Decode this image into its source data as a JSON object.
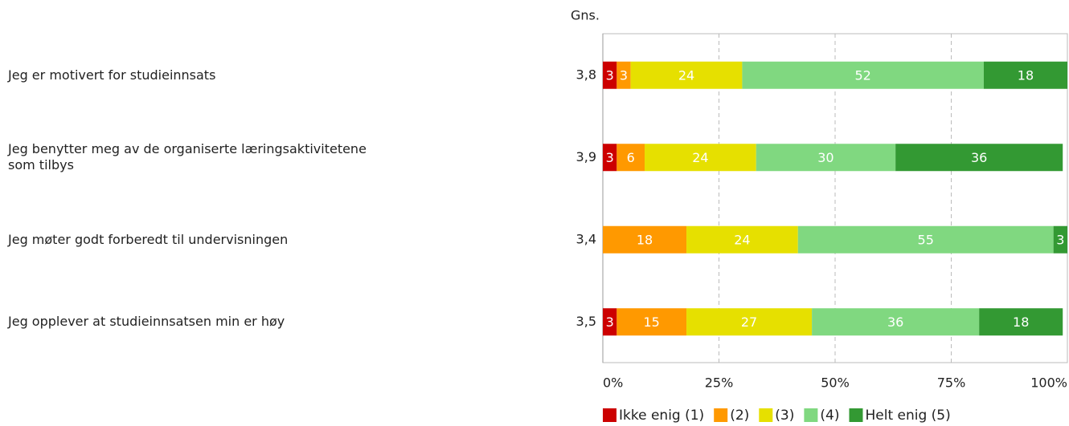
{
  "chart_data": {
    "type": "stacked-barh",
    "categories": [
      "Jeg er motivert for studieinnsats",
      "Jeg benytter meg av de organiserte læringsaktivitetene som tilbys",
      "Jeg møter godt forberedt til undervisningen",
      "Jeg opplever at studieinnsatsen min er høy"
    ],
    "series": [
      {
        "name": "Ikke enig (1)",
        "color": "#cc0000",
        "values": [
          3,
          3,
          null,
          3
        ]
      },
      {
        "name": "(2)",
        "color": "#ff9900",
        "values": [
          3,
          6,
          18,
          15
        ]
      },
      {
        "name": "(3)",
        "color": "#e6e000",
        "values": [
          24,
          24,
          24,
          27
        ]
      },
      {
        "name": "(4)",
        "color": "#80d880",
        "values": [
          52,
          30,
          55,
          36
        ]
      },
      {
        "name": "Helt enig (5)",
        "color": "#339933",
        "values": [
          18,
          36,
          3,
          18
        ]
      }
    ],
    "averages": {
      "title": "Gns.",
      "values": [
        3.8,
        3.9,
        3.4,
        3.5
      ],
      "value_labels": [
        "3,8",
        "3,9",
        "3,4",
        "3,5"
      ]
    },
    "xlim": [
      0,
      100
    ],
    "xticks": [
      {
        "value": 0,
        "label": "0%"
      },
      {
        "value": 25,
        "label": "25%"
      },
      {
        "value": 50,
        "label": "50%"
      },
      {
        "value": 75,
        "label": "75%"
      },
      {
        "value": 100,
        "label": "100%"
      }
    ],
    "grid": true,
    "legend": "bottom"
  }
}
